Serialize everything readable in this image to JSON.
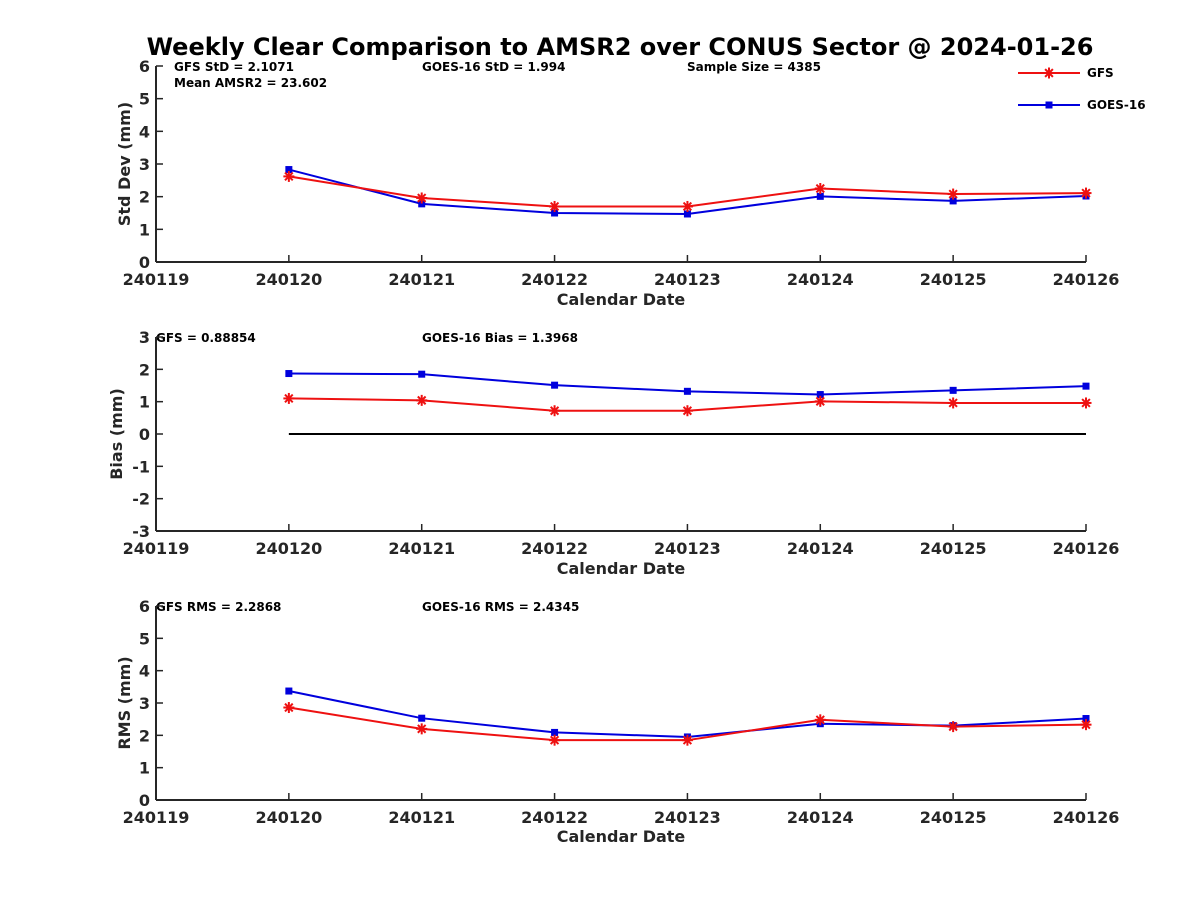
{
  "figure": {
    "title": "Weekly Clear Comparison to AMSR2 over CONUS Sector @ 2024-01-26"
  },
  "legend": [
    {
      "label": "GFS",
      "color": "#ee1111",
      "marker": "asterisk"
    },
    {
      "label": "GOES-16",
      "color": "#0000dd",
      "marker": "square"
    }
  ],
  "colors": {
    "gfs": "#ee1111",
    "goes": "#0000dd",
    "axis": "#262626",
    "zero_line": "#000000"
  },
  "chart_data": [
    {
      "type": "line",
      "xlabel": "Calendar Date",
      "ylabel": "Std Dev (mm)",
      "x": [
        240119,
        240120,
        240121,
        240122,
        240123,
        240124,
        240125,
        240126
      ],
      "xlim": [
        240119,
        240126
      ],
      "ylim": [
        0,
        6
      ],
      "yticks": [
        0,
        1,
        2,
        3,
        4,
        5,
        6
      ],
      "grid": false,
      "annotations": [
        "GFS StD = 2.1071",
        "Mean AMSR2 = 23.602",
        "GOES-16 StD = 1.994",
        "Sample Size = 4385"
      ],
      "series": [
        {
          "name": "GFS",
          "x": [
            240120,
            240121,
            240122,
            240123,
            240124,
            240125,
            240126
          ],
          "values": [
            2.62,
            1.96,
            1.7,
            1.7,
            2.25,
            2.08,
            2.11
          ]
        },
        {
          "name": "GOES-16",
          "x": [
            240120,
            240121,
            240122,
            240123,
            240124,
            240125,
            240126
          ],
          "values": [
            2.83,
            1.78,
            1.5,
            1.47,
            2.01,
            1.87,
            2.02
          ]
        }
      ]
    },
    {
      "type": "line",
      "xlabel": "Calendar Date",
      "ylabel": "Bias (mm)",
      "x": [
        240119,
        240120,
        240121,
        240122,
        240123,
        240124,
        240125,
        240126
      ],
      "xlim": [
        240119,
        240126
      ],
      "ylim": [
        -3,
        3
      ],
      "yticks": [
        -3,
        -2,
        -1,
        0,
        1,
        2,
        3
      ],
      "grid": false,
      "zero_line": true,
      "annotations": [
        "GFS = 0.88854",
        "GOES-16 Bias  = 1.3968"
      ],
      "series": [
        {
          "name": "GFS",
          "x": [
            240120,
            240121,
            240122,
            240123,
            240124,
            240125,
            240126
          ],
          "values": [
            1.1,
            1.04,
            0.72,
            0.72,
            1.01,
            0.96,
            0.96
          ]
        },
        {
          "name": "GOES-16",
          "x": [
            240120,
            240121,
            240122,
            240123,
            240124,
            240125,
            240126
          ],
          "values": [
            1.87,
            1.85,
            1.51,
            1.32,
            1.22,
            1.35,
            1.48
          ]
        }
      ]
    },
    {
      "type": "line",
      "xlabel": "Calendar Date",
      "ylabel": "RMS (mm)",
      "x": [
        240119,
        240120,
        240121,
        240122,
        240123,
        240124,
        240125,
        240126
      ],
      "xlim": [
        240119,
        240126
      ],
      "ylim": [
        0,
        6
      ],
      "yticks": [
        0,
        1,
        2,
        3,
        4,
        5,
        6
      ],
      "grid": false,
      "annotations": [
        "GFS RMS = 2.2868",
        "GOES-16 RMS = 2.4345"
      ],
      "series": [
        {
          "name": "GFS",
          "x": [
            240120,
            240121,
            240122,
            240123,
            240124,
            240125,
            240126
          ],
          "values": [
            2.86,
            2.2,
            1.85,
            1.85,
            2.48,
            2.27,
            2.33
          ]
        },
        {
          "name": "GOES-16",
          "x": [
            240120,
            240121,
            240122,
            240123,
            240124,
            240125,
            240126
          ],
          "values": [
            3.37,
            2.53,
            2.09,
            1.95,
            2.36,
            2.3,
            2.52
          ]
        }
      ]
    }
  ]
}
